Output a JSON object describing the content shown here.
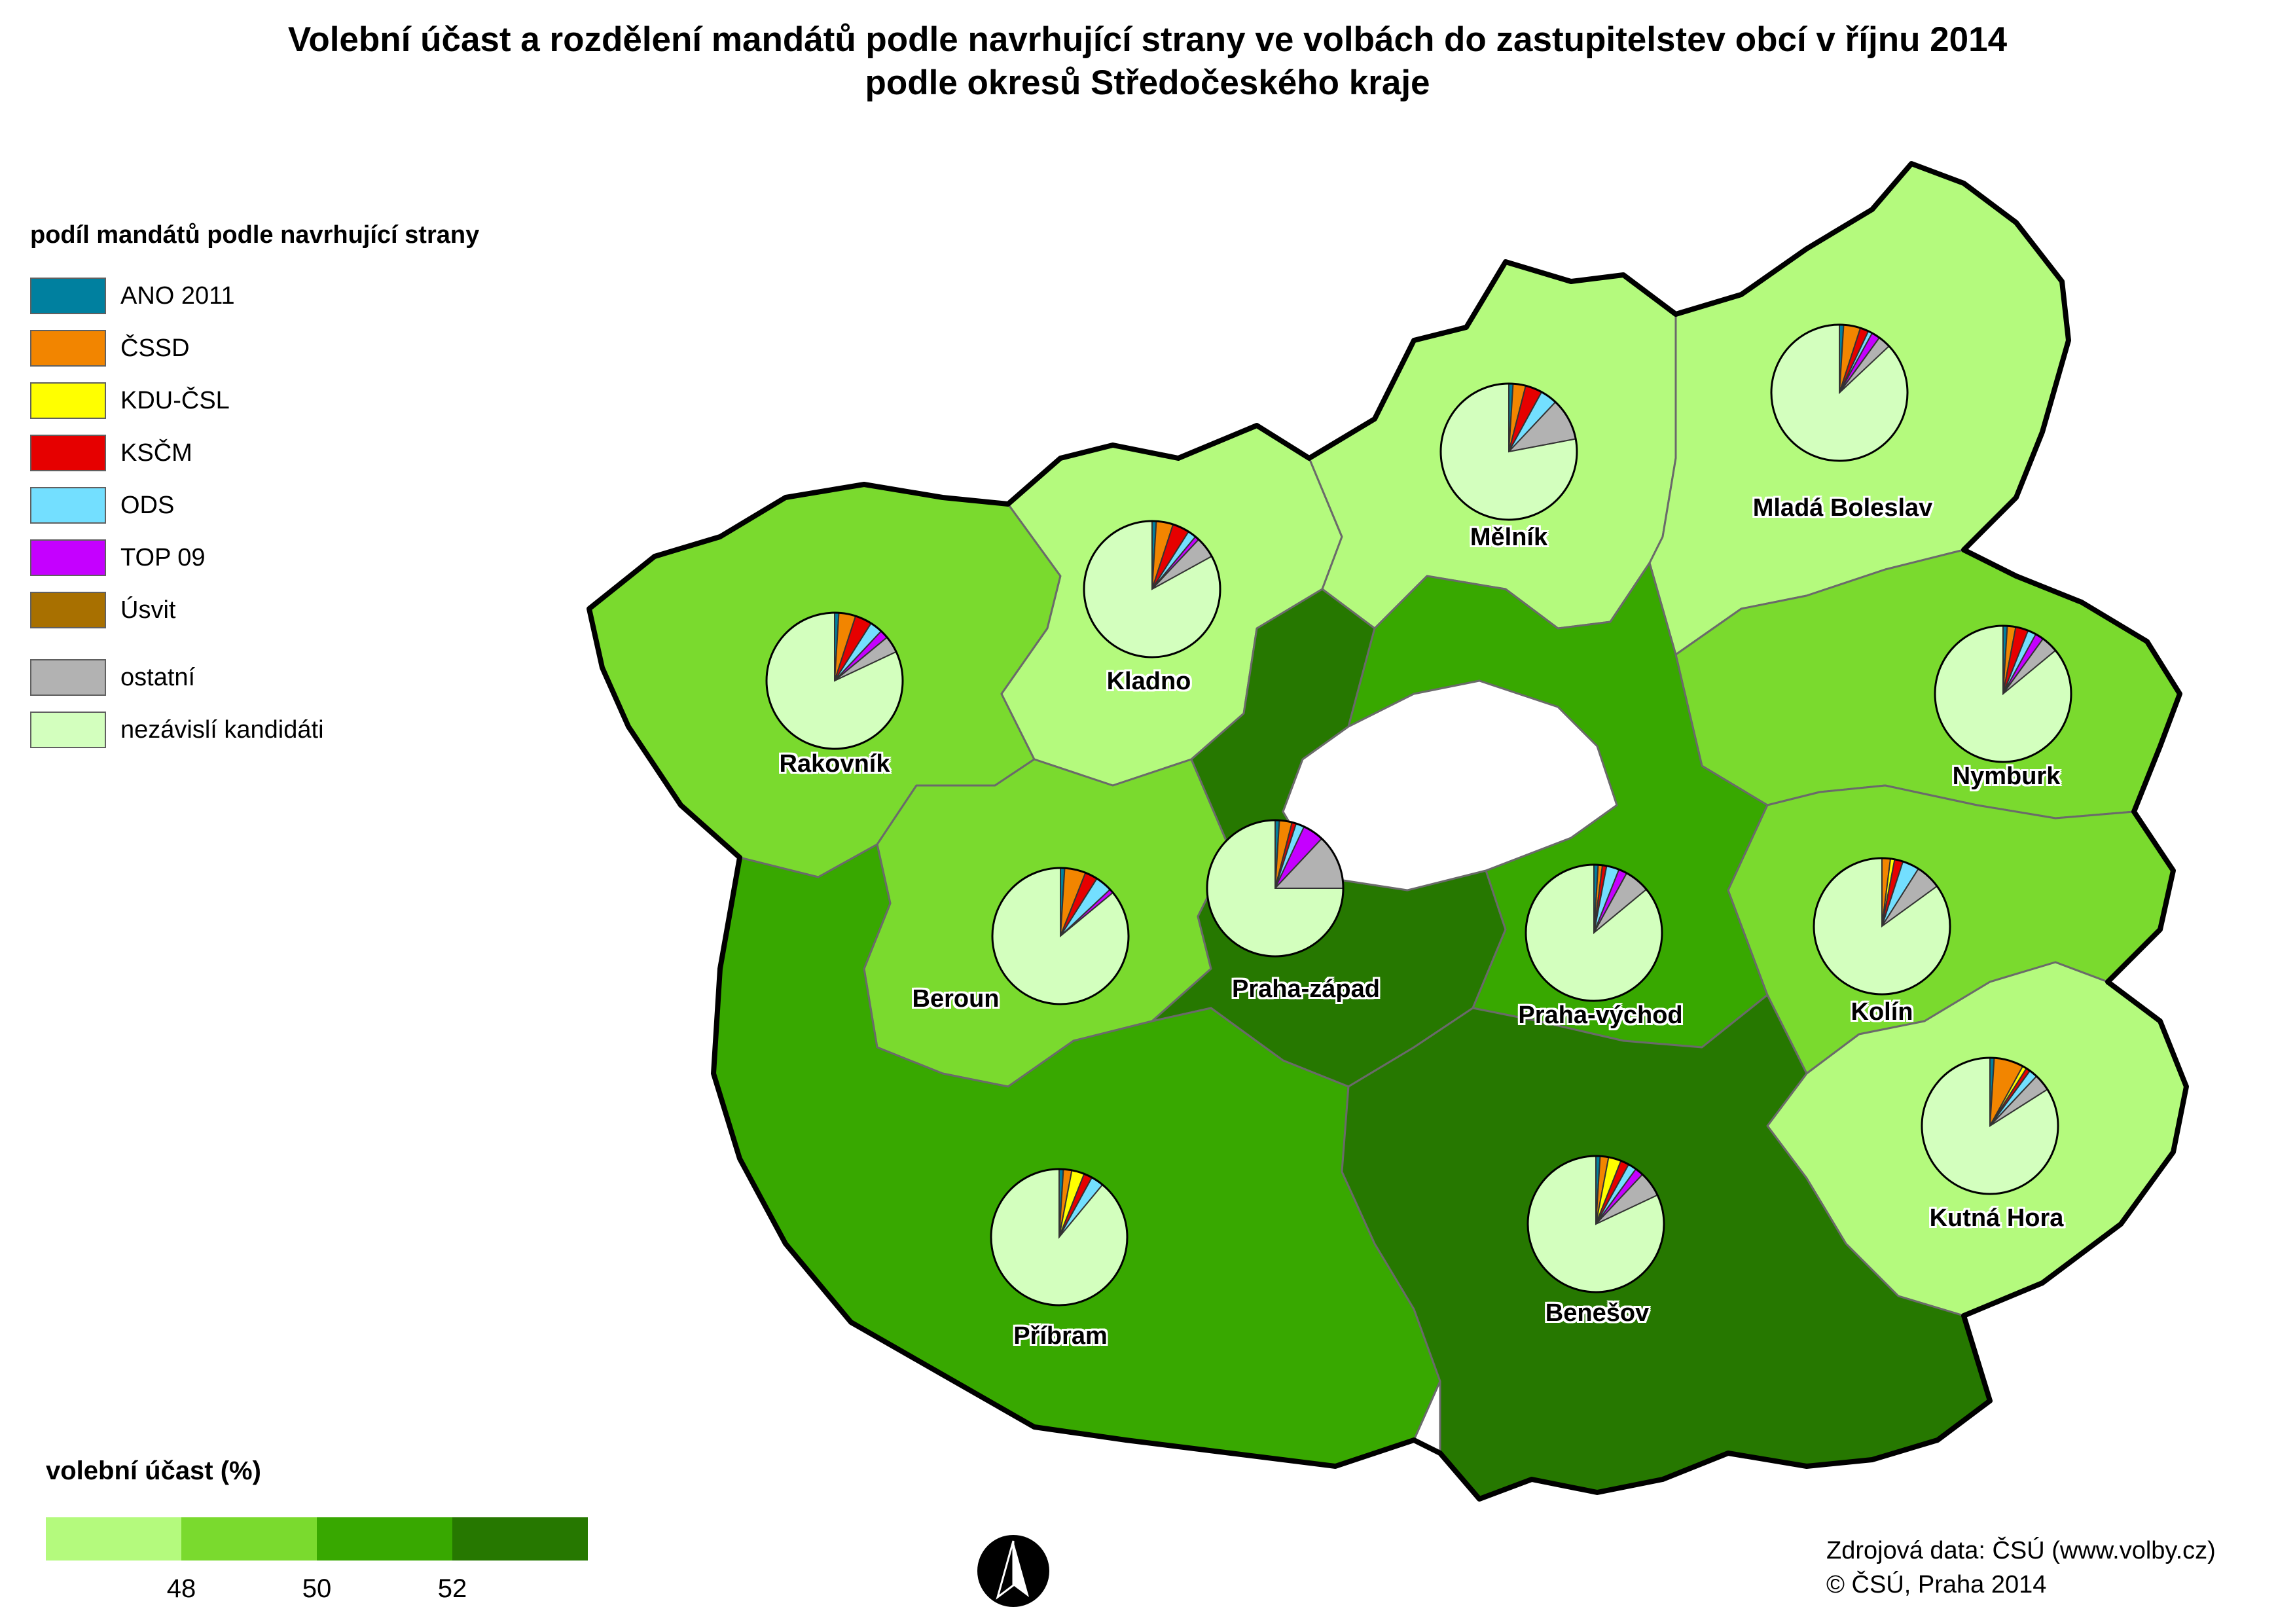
{
  "title": {
    "line1": "Volební účast a rozdělení mandátů podle navrhující strany ve volbách do zastupitelstev obcí v říjnu 2014",
    "line2": "podle okresů Středočeského kraje"
  },
  "legend": {
    "title": "podíl mandátů podle navrhující strany",
    "items": [
      {
        "label": "ANO 2011",
        "color": "#00809f"
      },
      {
        "label": "ČSSD",
        "color": "#f28500"
      },
      {
        "label": "KDU-ČSL",
        "color": "#ffff00"
      },
      {
        "label": "KSČM",
        "color": "#e60000"
      },
      {
        "label": "ODS",
        "color": "#73dfff"
      },
      {
        "label": "TOP 09",
        "color": "#c500ff"
      },
      {
        "label": "Úsvit",
        "color": "#a87000"
      }
    ],
    "extra_items": [
      {
        "label": "ostatní",
        "color": "#b2b2b2"
      },
      {
        "label": "nezávislí kandidáti",
        "color": "#d3ffbe"
      }
    ]
  },
  "turnout_scale": {
    "title": "volební účast (%)",
    "classes": [
      "#b4fa7d",
      "#7ada2e",
      "#38a800",
      "#267800"
    ],
    "ticks": [
      "48",
      "50",
      "52"
    ]
  },
  "districts": [
    {
      "name": "Rakovník",
      "turnout_class": 1,
      "shares": [
        1,
        4,
        0,
        4,
        3,
        2,
        0,
        4,
        82
      ]
    },
    {
      "name": "Kladno",
      "turnout_class": 0,
      "shares": [
        1,
        4,
        0,
        4,
        2,
        1,
        0,
        5,
        83
      ]
    },
    {
      "name": "Mělník",
      "turnout_class": 0,
      "shares": [
        1,
        3,
        0,
        4,
        4,
        0,
        0,
        10,
        78
      ]
    },
    {
      "name": "Mladá Boleslav",
      "turnout_class": 0,
      "shares": [
        1,
        4,
        0,
        2,
        1,
        2,
        0,
        3,
        87
      ]
    },
    {
      "name": "Nymburk",
      "turnout_class": 1,
      "shares": [
        1,
        2,
        0,
        3,
        2,
        2,
        0,
        4,
        86
      ]
    },
    {
      "name": "Beroun",
      "turnout_class": 1,
      "shares": [
        1,
        5,
        0,
        3,
        4,
        1,
        0,
        0,
        86
      ]
    },
    {
      "name": "Praha-západ",
      "turnout_class": 3,
      "shares": [
        1,
        3,
        0,
        1,
        2,
        5,
        0,
        13,
        75
      ]
    },
    {
      "name": "Praha-východ",
      "turnout_class": 2,
      "shares": [
        1,
        1,
        0,
        1,
        3,
        2,
        0,
        6,
        86
      ]
    },
    {
      "name": "Kolín",
      "turnout_class": 1,
      "shares": [
        0,
        2,
        1,
        2,
        4,
        0,
        0,
        6,
        85
      ]
    },
    {
      "name": "Kutná Hora",
      "turnout_class": 0,
      "shares": [
        1,
        7,
        1,
        1,
        2,
        0,
        0,
        4,
        84
      ]
    },
    {
      "name": "Příbram",
      "turnout_class": 2,
      "shares": [
        1,
        2,
        3,
        2,
        3,
        0,
        0,
        0,
        89
      ]
    },
    {
      "name": "Benešov",
      "turnout_class": 3,
      "shares": [
        1,
        2,
        3,
        2,
        2,
        2,
        0,
        6,
        82
      ]
    }
  ],
  "source": {
    "line1": "Zdrojová data: ČSÚ (www.volby.cz)",
    "line2": "© ČSÚ, Praha 2014"
  }
}
